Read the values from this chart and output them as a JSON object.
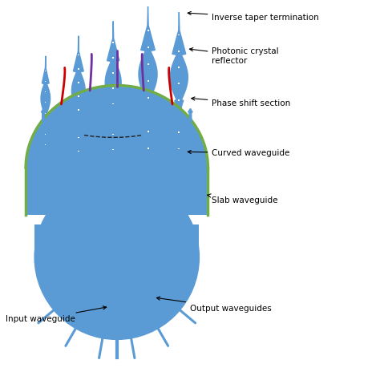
{
  "bg_color": "#ffffff",
  "blue_color": "#5b9bd5",
  "green_color": "#70ad47",
  "red_color": "#cc0000",
  "purple_color": "#7030a0",
  "teal_color": "#1f7a8c",
  "dashed_color": "#222222",
  "text_color": "#000000",
  "labels": {
    "inverse_taper": "Inverse taper termination",
    "photonic_crystal": "Photonic crystal\nreflector",
    "phase_shift": "Phase shift section",
    "curved_waveguide": "Curved waveguide",
    "slab_waveguide": "Slab waveguide",
    "output_waveguides": "Output waveguides",
    "input_waveguide": "Input waveguide"
  },
  "figsize": [
    4.74,
    4.59
  ],
  "dpi": 100
}
